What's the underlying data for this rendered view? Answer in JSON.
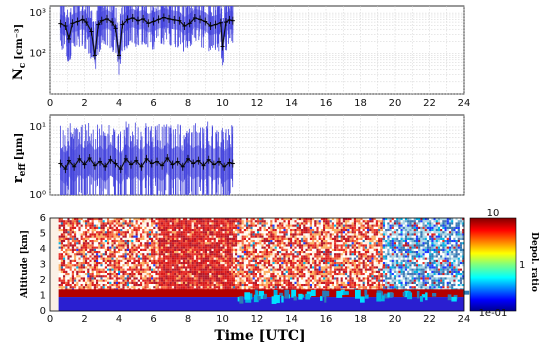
{
  "figure": {
    "xlabel": "Time [UTC]",
    "x_ticks": [
      "0",
      "2",
      "4",
      "6",
      "8",
      "10",
      "12",
      "14",
      "16",
      "18",
      "20",
      "22",
      "24"
    ]
  },
  "chart_data": [
    {
      "type": "line",
      "panel": "droplet-number",
      "ylabel_main": "N",
      "ylabel_sub": "c",
      "ylabel_unit": "[cm⁻³]",
      "xlim": [
        0,
        24
      ],
      "ylim": [
        10,
        1500
      ],
      "yscale": "log",
      "y_ticks": [
        {
          "v": 100,
          "label": "10²"
        },
        {
          "v": 1000,
          "label": "10³"
        }
      ],
      "grid": true,
      "series": [
        {
          "values": [
            [
              0.6,
              550
            ],
            [
              0.9,
              480
            ],
            [
              1.1,
              230
            ],
            [
              1.3,
              560
            ],
            [
              1.6,
              620
            ],
            [
              1.9,
              700
            ],
            [
              2.1,
              600
            ],
            [
              2.4,
              350
            ],
            [
              2.6,
              90
            ],
            [
              2.8,
              520
            ],
            [
              3.0,
              650
            ],
            [
              3.3,
              720
            ],
            [
              3.6,
              600
            ],
            [
              3.8,
              420
            ],
            [
              4.0,
              90
            ],
            [
              4.2,
              520
            ],
            [
              4.5,
              700
            ],
            [
              4.8,
              760
            ],
            [
              5.1,
              650
            ],
            [
              5.4,
              720
            ],
            [
              5.7,
              560
            ],
            [
              6.0,
              620
            ],
            [
              6.3,
              700
            ],
            [
              6.6,
              780
            ],
            [
              6.9,
              720
            ],
            [
              7.2,
              680
            ],
            [
              7.5,
              650
            ],
            [
              7.8,
              480
            ],
            [
              8.1,
              560
            ],
            [
              8.4,
              760
            ],
            [
              8.7,
              700
            ],
            [
              9.0,
              620
            ],
            [
              9.3,
              480
            ],
            [
              9.6,
              520
            ],
            [
              9.9,
              580
            ],
            [
              10.0,
              150
            ],
            [
              10.2,
              600
            ],
            [
              10.4,
              680
            ],
            [
              10.6,
              650
            ]
          ]
        }
      ],
      "colors": {
        "line": "#111111",
        "spread": "#4444dd"
      }
    },
    {
      "type": "line",
      "panel": "effective-radius",
      "ylabel_main": "r",
      "ylabel_sub": "eff",
      "ylabel_unit": "[µm]",
      "xlim": [
        0,
        24
      ],
      "ylim": [
        1,
        15
      ],
      "yscale": "log",
      "y_ticks": [
        {
          "v": 1,
          "label": "10⁰"
        },
        {
          "v": 10,
          "label": "10¹"
        }
      ],
      "grid": true,
      "series": [
        {
          "values": [
            [
              0.6,
              2.9
            ],
            [
              0.9,
              2.4
            ],
            [
              1.1,
              3.2
            ],
            [
              1.4,
              2.6
            ],
            [
              1.7,
              3.4
            ],
            [
              2.0,
              2.8
            ],
            [
              2.3,
              3.5
            ],
            [
              2.6,
              2.7
            ],
            [
              2.9,
              3.1
            ],
            [
              3.2,
              2.6
            ],
            [
              3.5,
              3.3
            ],
            [
              3.8,
              2.9
            ],
            [
              4.1,
              2.4
            ],
            [
              4.4,
              3.4
            ],
            [
              4.7,
              2.8
            ],
            [
              5.0,
              3.2
            ],
            [
              5.3,
              2.6
            ],
            [
              5.6,
              3.4
            ],
            [
              5.9,
              2.9
            ],
            [
              6.2,
              3.1
            ],
            [
              6.5,
              2.7
            ],
            [
              6.8,
              3.5
            ],
            [
              7.1,
              2.8
            ],
            [
              7.4,
              3.1
            ],
            [
              7.7,
              2.6
            ],
            [
              8.0,
              3.4
            ],
            [
              8.3,
              2.9
            ],
            [
              8.6,
              3.2
            ],
            [
              8.9,
              2.7
            ],
            [
              9.2,
              3.3
            ],
            [
              9.5,
              2.8
            ],
            [
              9.8,
              3.1
            ],
            [
              10.1,
              2.6
            ],
            [
              10.4,
              3.0
            ],
            [
              10.6,
              2.9
            ]
          ]
        }
      ],
      "colors": {
        "line": "#111111",
        "spread": "#4444dd"
      }
    },
    {
      "type": "heatmap",
      "panel": "depolarization",
      "ylabel": "Altitude [km]",
      "xlim": [
        0,
        24
      ],
      "ylim": [
        0,
        6
      ],
      "y_ticks": [
        "0",
        "1",
        "2",
        "3",
        "4",
        "5",
        "6"
      ],
      "colorbar": {
        "label": "Depol. ratio",
        "scale": "log",
        "ticks": [
          "10",
          "1",
          "1e-01"
        ],
        "range": [
          0.1,
          10
        ]
      },
      "segments": [
        {
          "x": [
            0.5,
            6.3
          ],
          "upper_ratio": 1.5,
          "mix": "noisy red/white"
        },
        {
          "x": [
            6.3,
            10.6
          ],
          "upper_ratio": 6.0,
          "mix": "dense red"
        },
        {
          "x": [
            10.6,
            19.3
          ],
          "upper_ratio": 1.2,
          "mix": "noisy red/white with cyan streaks"
        },
        {
          "x": [
            19.3,
            24
          ],
          "upper_ratio": 0.5,
          "mix": "noisy blue/cyan"
        }
      ],
      "cloud_layer_km": [
        0.9,
        1.4
      ],
      "boundary_layer_km": [
        0,
        0.9
      ]
    }
  ]
}
